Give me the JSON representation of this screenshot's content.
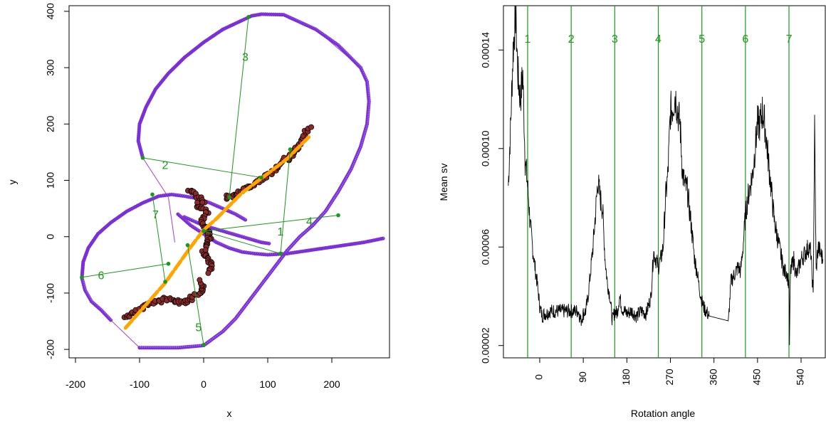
{
  "chart_data": [
    {
      "type": "scatter",
      "xlabel": "x",
      "ylabel": "y",
      "xlim": [
        -210,
        290
      ],
      "ylim": [
        -215,
        410
      ],
      "x_ticks": [
        "-200",
        "-100",
        "0",
        "100",
        "200"
      ],
      "x_tick_values": [
        -200,
        -100,
        0,
        100,
        200
      ],
      "y_ticks": [
        "-200",
        "-100",
        "0",
        "100",
        "200",
        "300",
        "400"
      ],
      "y_tick_values": [
        -200,
        -100,
        0,
        100,
        200,
        300,
        400
      ],
      "colors": {
        "outer": "#7b2fd6",
        "outer_marker": "#a06ee8",
        "hull": "#a03de0",
        "track": "#8b2a2a",
        "fit": "#ffa500",
        "segments": "#1a9a1a",
        "inner": "#7b2fd6"
      },
      "outer_curve": [
        [
          -95,
          140
        ],
        [
          -102,
          170
        ],
        [
          -100,
          200
        ],
        [
          -90,
          230
        ],
        [
          -75,
          262
        ],
        [
          -55,
          290
        ],
        [
          -30,
          318
        ],
        [
          0,
          345
        ],
        [
          30,
          368
        ],
        [
          60,
          384
        ],
        [
          75,
          392
        ],
        [
          90,
          395
        ],
        [
          125,
          394
        ],
        [
          175,
          368
        ],
        [
          210,
          340
        ],
        [
          245,
          300
        ],
        [
          255,
          275
        ],
        [
          258,
          240
        ],
        [
          255,
          200
        ],
        [
          245,
          160
        ],
        [
          230,
          120
        ],
        [
          210,
          80
        ],
        [
          190,
          45
        ],
        [
          170,
          20
        ],
        [
          150,
          0
        ],
        [
          130,
          -25
        ],
        [
          110,
          -55
        ],
        [
          90,
          -85
        ],
        [
          70,
          -115
        ],
        [
          50,
          -145
        ],
        [
          30,
          -168
        ],
        [
          0,
          -193
        ],
        [
          -40,
          -197
        ],
        [
          -80,
          -197
        ],
        [
          -100,
          -197
        ]
      ],
      "left_loop": [
        [
          -190,
          -73
        ],
        [
          -188,
          -45
        ],
        [
          -180,
          -20
        ],
        [
          -165,
          5
        ],
        [
          -145,
          25
        ],
        [
          -120,
          45
        ],
        [
          -95,
          60
        ],
        [
          -70,
          72
        ],
        [
          -50,
          75
        ],
        [
          -30,
          72
        ],
        [
          -10,
          68
        ],
        [
          10,
          60
        ],
        [
          30,
          50
        ],
        [
          50,
          40
        ],
        [
          65,
          30
        ]
      ],
      "lower_loop": [
        [
          -190,
          -73
        ],
        [
          -185,
          -95
        ],
        [
          -175,
          -115
        ],
        [
          -160,
          -130
        ],
        [
          -145,
          -148
        ]
      ],
      "inner_arc": [
        [
          -40,
          40
        ],
        [
          -20,
          20
        ],
        [
          0,
          5
        ],
        [
          20,
          -10
        ],
        [
          40,
          -20
        ],
        [
          60,
          -27
        ],
        [
          80,
          -30
        ],
        [
          100,
          -32
        ],
        [
          130,
          -30
        ],
        [
          160,
          -25
        ],
        [
          190,
          -20
        ],
        [
          220,
          -15
        ],
        [
          250,
          -10
        ],
        [
          280,
          -3
        ]
      ],
      "inner_short": [
        [
          -30,
          35
        ],
        [
          0,
          20
        ],
        [
          30,
          10
        ],
        [
          60,
          0
        ],
        [
          90,
          -10
        ],
        [
          102,
          -12
        ]
      ],
      "hull_edges": [
        [
          [
            175,
            368
          ],
          [
            125,
            394
          ]
        ],
        [
          [
            175,
            368
          ],
          [
            245,
            300
          ]
        ],
        [
          [
            -145,
            -148
          ],
          [
            -100,
            -197
          ]
        ],
        [
          [
            -95,
            140
          ],
          [
            -55,
            70
          ]
        ],
        [
          [
            -55,
            70
          ],
          [
            -45,
            -10
          ]
        ]
      ],
      "track_upper": [
        [
          -22,
          85
        ],
        [
          -18,
          78
        ],
        [
          -12,
          72
        ],
        [
          -5,
          68
        ],
        [
          0,
          62
        ],
        [
          -10,
          55
        ],
        [
          -5,
          50
        ],
        [
          5,
          45
        ],
        [
          0,
          35
        ],
        [
          -2,
          25
        ],
        [
          5,
          12
        ],
        [
          10,
          0
        ],
        [
          5,
          -10
        ],
        [
          0,
          -25
        ],
        [
          5,
          -35
        ],
        [
          10,
          -45
        ],
        [
          12,
          -55
        ],
        [
          10,
          -65
        ]
      ],
      "track_mid": [
        [
          35,
          70
        ],
        [
          45,
          72
        ],
        [
          55,
          78
        ],
        [
          65,
          85
        ],
        [
          75,
          92
        ],
        [
          85,
          98
        ],
        [
          95,
          105
        ],
        [
          105,
          112
        ],
        [
          115,
          125
        ],
        [
          125,
          135
        ],
        [
          135,
          142
        ],
        [
          140,
          148
        ],
        [
          145,
          155
        ],
        [
          150,
          165
        ],
        [
          155,
          175
        ],
        [
          160,
          185
        ],
        [
          165,
          192
        ]
      ],
      "track_lower": [
        [
          -125,
          -142
        ],
        [
          -115,
          -138
        ],
        [
          -105,
          -130
        ],
        [
          -95,
          -124
        ],
        [
          -80,
          -118
        ],
        [
          -65,
          -112
        ],
        [
          -55,
          -110
        ],
        [
          -40,
          -115
        ],
        [
          -28,
          -118
        ],
        [
          -20,
          -110
        ],
        [
          -12,
          -105
        ],
        [
          -5,
          -98
        ],
        [
          0,
          -90
        ],
        [
          -5,
          -80
        ]
      ],
      "fit_line": [
        [
          -122,
          -162
        ],
        [
          -60,
          -82
        ],
        [
          -20,
          -18
        ],
        [
          0,
          12
        ],
        [
          20,
          32
        ],
        [
          60,
          78
        ],
        [
          100,
          112
        ],
        [
          130,
          138
        ],
        [
          165,
          178
        ]
      ],
      "segments": [
        {
          "label": "1",
          "from": [
            0,
            10
          ],
          "to": [
            120,
            -30
          ],
          "label_at": [
            120,
            10
          ]
        },
        {
          "label": "2",
          "from": [
            -95,
            140
          ],
          "to": [
            90,
            105
          ],
          "label_at": [
            -60,
            128
          ]
        },
        {
          "label": "3",
          "from": [
            70,
            390
          ],
          "to": [
            40,
            70
          ],
          "label_at": [
            65,
            320
          ]
        },
        {
          "label": "4",
          "from": [
            0,
            10
          ],
          "to": [
            210,
            38
          ],
          "label_at": [
            165,
            28
          ]
        },
        {
          "label": "5",
          "from": [
            -25,
            -15
          ],
          "to": [
            0,
            -192
          ],
          "label_at": [
            -8,
            -160
          ]
        },
        {
          "label": "6",
          "from": [
            -190,
            -72
          ],
          "to": [
            -55,
            -48
          ],
          "label_at": [
            -160,
            -68
          ]
        },
        {
          "label": "7",
          "from": [
            -80,
            75
          ],
          "to": [
            -60,
            -80
          ],
          "label_at": [
            -75,
            40
          ]
        },
        {
          "label": "",
          "from": [
            120,
            -30
          ],
          "to": [
            135,
            155
          ],
          "label_at": [
            0,
            0
          ]
        }
      ]
    },
    {
      "type": "line",
      "xlabel": "Rotation angle",
      "ylabel": "Mean sv",
      "xlim": [
        -75,
        590
      ],
      "ylim": [
        1.5e-05,
        0.000158
      ],
      "x_ticks": [
        "0",
        "90",
        "180",
        "270",
        "360",
        "450",
        "540"
      ],
      "x_tick_values": [
        0,
        90,
        180,
        270,
        360,
        450,
        540
      ],
      "y_ticks": [
        "0.00002",
        "0.00006",
        "0.00010",
        "0.00014"
      ],
      "y_tick_values": [
        2e-05,
        6e-05,
        0.0001,
        0.00014
      ],
      "vlines": [
        {
          "label": "1",
          "x": -25
        },
        {
          "label": "2",
          "x": 65
        },
        {
          "label": "3",
          "x": 155
        },
        {
          "label": "4",
          "x": 245
        },
        {
          "label": "5",
          "x": 335
        },
        {
          "label": "6",
          "x": 425
        },
        {
          "label": "7",
          "x": 515
        }
      ],
      "colors": {
        "line": "#000000",
        "vlines": "#1a9a1a"
      },
      "series_base": [
        [
          -65,
          8.5e-05
        ],
        [
          -60,
          0.00011
        ],
        [
          -55,
          0.00014
        ],
        [
          -50,
          0.000155
        ],
        [
          -45,
          0.00013
        ],
        [
          -40,
          0.00012
        ],
        [
          -35,
          0.00013
        ],
        [
          -30,
          9.5e-05
        ],
        [
          -25,
          8.5e-05
        ],
        [
          -20,
          7e-05
        ],
        [
          -15,
          6e-05
        ],
        [
          -10,
          5.2e-05
        ],
        [
          -5,
          4.5e-05
        ],
        [
          0,
          3.6e-05
        ],
        [
          5,
          3.2e-05
        ],
        [
          10,
          3.3e-05
        ],
        [
          15,
          3.3e-05
        ],
        [
          20,
          3.4e-05
        ],
        [
          30,
          3.4e-05
        ],
        [
          50,
          3.4e-05
        ],
        [
          70,
          3.4e-05
        ],
        [
          80,
          3.4e-05
        ],
        [
          85,
          3e-05
        ],
        [
          90,
          3.3e-05
        ],
        [
          95,
          3.4e-05
        ],
        [
          100,
          4e-05
        ],
        [
          105,
          5e-05
        ],
        [
          110,
          6e-05
        ],
        [
          115,
          7.3e-05
        ],
        [
          120,
          8.7e-05
        ],
        [
          125,
          8e-05
        ],
        [
          130,
          7.5e-05
        ],
        [
          135,
          5.5e-05
        ],
        [
          140,
          4.5e-05
        ],
        [
          145,
          4e-05
        ],
        [
          150,
          3e-05
        ],
        [
          155,
          3.4e-05
        ],
        [
          160,
          3.3e-05
        ],
        [
          165,
          4e-05
        ],
        [
          170,
          3.5e-05
        ],
        [
          180,
          3.3e-05
        ],
        [
          190,
          3.4e-05
        ],
        [
          200,
          3.2e-05
        ],
        [
          210,
          3.4e-05
        ],
        [
          220,
          3.3e-05
        ],
        [
          230,
          4e-05
        ],
        [
          235,
          5.8e-05
        ],
        [
          240,
          5.5e-05
        ],
        [
          245,
          5.2e-05
        ],
        [
          250,
          5.5e-05
        ],
        [
          255,
          6e-05
        ],
        [
          260,
          8e-05
        ],
        [
          265,
          9e-05
        ],
        [
          270,
          0.000115
        ],
        [
          275,
          0.000117
        ],
        [
          280,
          0.000122
        ],
        [
          285,
          0.000115
        ],
        [
          290,
          0.00011
        ],
        [
          295,
          9e-05
        ],
        [
          300,
          8.5e-05
        ],
        [
          305,
          8.3e-05
        ],
        [
          310,
          7.4e-05
        ],
        [
          315,
          6.5e-05
        ],
        [
          320,
          5.5e-05
        ],
        [
          325,
          5e-05
        ],
        [
          330,
          4.3e-05
        ],
        [
          335,
          3.8e-05
        ],
        [
          340,
          3.5e-05
        ],
        [
          350,
          3.2e-05
        ],
        [
          390,
          3e-05
        ],
        [
          395,
          4.6e-05
        ],
        [
          400,
          4.8e-05
        ],
        [
          405,
          5e-05
        ],
        [
          410,
          5.2e-05
        ],
        [
          415,
          5e-05
        ],
        [
          420,
          6e-05
        ],
        [
          425,
          7.3e-05
        ],
        [
          430,
          8e-05
        ],
        [
          435,
          8.5e-05
        ],
        [
          440,
          9e-05
        ],
        [
          445,
          0.0001
        ],
        [
          450,
          0.00011
        ],
        [
          455,
          0.00011
        ],
        [
          460,
          0.000115
        ],
        [
          465,
          0.00011
        ],
        [
          470,
          0.0001
        ],
        [
          475,
          9e-05
        ],
        [
          480,
          8e-05
        ],
        [
          485,
          7e-05
        ],
        [
          490,
          6.5e-05
        ],
        [
          495,
          6e-05
        ],
        [
          500,
          5.5e-05
        ],
        [
          505,
          5e-05
        ],
        [
          510,
          5e-05
        ],
        [
          515,
          4.5e-05
        ],
        [
          516,
          2.1e-05
        ],
        [
          518,
          5e-05
        ],
        [
          525,
          5.5e-05
        ],
        [
          530,
          4.8e-05
        ],
        [
          540,
          5.5e-05
        ],
        [
          550,
          5.8e-05
        ],
        [
          555,
          6e-05
        ],
        [
          560,
          5.8e-05
        ],
        [
          565,
          4e-05
        ],
        [
          568,
          0.000108
        ],
        [
          571,
          5e-05
        ],
        [
          575,
          6e-05
        ],
        [
          585,
          5.5e-05
        ]
      ]
    }
  ]
}
